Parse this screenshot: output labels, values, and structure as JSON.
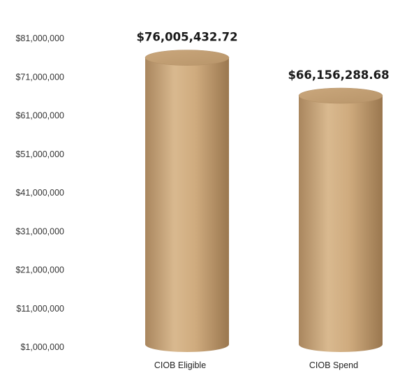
{
  "chart_data": {
    "type": "bar",
    "style": "3d-cylinder",
    "categories": [
      "CIOB Eligible",
      "CIOB Spend"
    ],
    "values": [
      76005432.72,
      66156288.68
    ],
    "data_labels": [
      "$76,005,432.72",
      "$66,156,288.68"
    ],
    "yticks": [
      81000000,
      71000000,
      61000000,
      51000000,
      41000000,
      31000000,
      21000000,
      11000000,
      1000000
    ],
    "ytick_labels": [
      "$81,000,000",
      "$71,000,000",
      "$61,000,000",
      "$51,000,000",
      "$41,000,000",
      "$31,000,000",
      "$21,000,000",
      "$11,000,000",
      "$1,000,000"
    ],
    "ylim": [
      1000000,
      81000000
    ],
    "grid": false,
    "legend": "none",
    "bar_color": "#c8a478"
  }
}
